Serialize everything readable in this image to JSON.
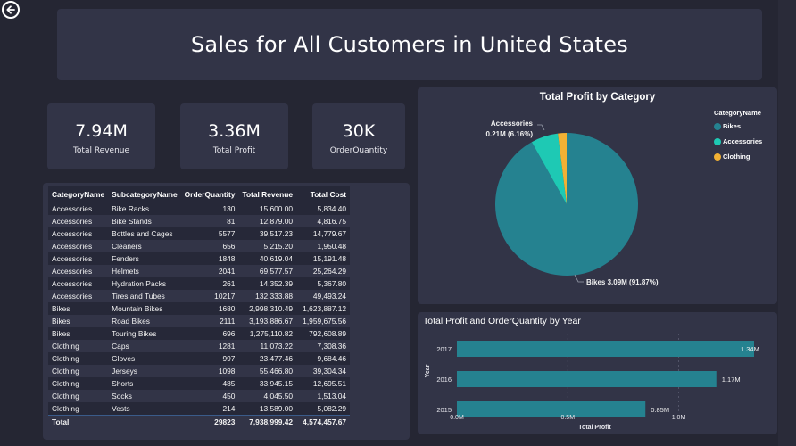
{
  "header": {
    "title": "Sales for All Customers in United States",
    "back_icon": "arrow-left-circle-icon"
  },
  "kpis": [
    {
      "value": "7.94M",
      "label": "Total Revenue"
    },
    {
      "value": "3.36M",
      "label": "Total Profit"
    },
    {
      "value": "30K",
      "label": "OrderQuantity"
    }
  ],
  "table": {
    "columns": [
      "CategoryName",
      "SubcategoryName",
      "OrderQuantity",
      "Total Revenue",
      "Total Cost"
    ],
    "rows": [
      [
        "Accessories",
        "Bike Racks",
        "130",
        "15,600.00",
        "5,834.40"
      ],
      [
        "Accessories",
        "Bike Stands",
        "81",
        "12,879.00",
        "4,816.75"
      ],
      [
        "Accessories",
        "Bottles and Cages",
        "5577",
        "39,517.23",
        "14,779.67"
      ],
      [
        "Accessories",
        "Cleaners",
        "656",
        "5,215.20",
        "1,950.48"
      ],
      [
        "Accessories",
        "Fenders",
        "1848",
        "40,619.04",
        "15,191.48"
      ],
      [
        "Accessories",
        "Helmets",
        "2041",
        "69,577.57",
        "25,264.29"
      ],
      [
        "Accessories",
        "Hydration Packs",
        "261",
        "14,352.39",
        "5,367.80"
      ],
      [
        "Accessories",
        "Tires and Tubes",
        "10217",
        "132,333.88",
        "49,493.24"
      ],
      [
        "Bikes",
        "Mountain Bikes",
        "1680",
        "2,998,310.49",
        "1,623,887.12"
      ],
      [
        "Bikes",
        "Road Bikes",
        "2111",
        "3,193,886.67",
        "1,959,675.56"
      ],
      [
        "Bikes",
        "Touring Bikes",
        "696",
        "1,275,110.82",
        "792,608.89"
      ],
      [
        "Clothing",
        "Caps",
        "1281",
        "11,073.22",
        "7,308.36"
      ],
      [
        "Clothing",
        "Gloves",
        "997",
        "23,477.46",
        "9,684.46"
      ],
      [
        "Clothing",
        "Jerseys",
        "1098",
        "55,466.80",
        "39,304.34"
      ],
      [
        "Clothing",
        "Shorts",
        "485",
        "33,945.15",
        "12,695.51"
      ],
      [
        "Clothing",
        "Socks",
        "450",
        "4,045.50",
        "1,513.04"
      ],
      [
        "Clothing",
        "Vests",
        "214",
        "13,589.00",
        "5,082.29"
      ]
    ],
    "total": [
      "Total",
      "",
      "29823",
      "7,938,999.42",
      "4,574,457.67"
    ]
  },
  "chart_data": [
    {
      "type": "pie",
      "title": "Total Profit by Category",
      "legend_title": "CategoryName",
      "legend_position": "top-right",
      "categories": [
        "Bikes",
        "Accessories",
        "Clothing"
      ],
      "values": [
        3.09,
        0.21,
        0.07
      ],
      "percentages": [
        91.87,
        6.16,
        1.97
      ],
      "unit": "M",
      "colors": [
        "#258290",
        "#1ec9b4",
        "#f2b134"
      ],
      "data_labels": [
        "Bikes 3.09M (91.87%)",
        "Accessories",
        "0.21M (6.16%)"
      ]
    },
    {
      "type": "bar",
      "orientation": "horizontal",
      "title": "Total Profit and OrderQuantity by Year",
      "categories": [
        "2017",
        "2016",
        "2015"
      ],
      "values": [
        1.34,
        1.17,
        0.85
      ],
      "data_labels": [
        "1.34M",
        "1.17M",
        "0.85M"
      ],
      "xlabel": "Total Profit",
      "ylabel": "Year",
      "xlim": [
        0,
        1.34
      ],
      "xticks": [
        0,
        0.5,
        1.0
      ],
      "xtick_labels": [
        "0.0M",
        "0.5M",
        "1.0M"
      ],
      "grid": true,
      "color": "#258290"
    }
  ]
}
